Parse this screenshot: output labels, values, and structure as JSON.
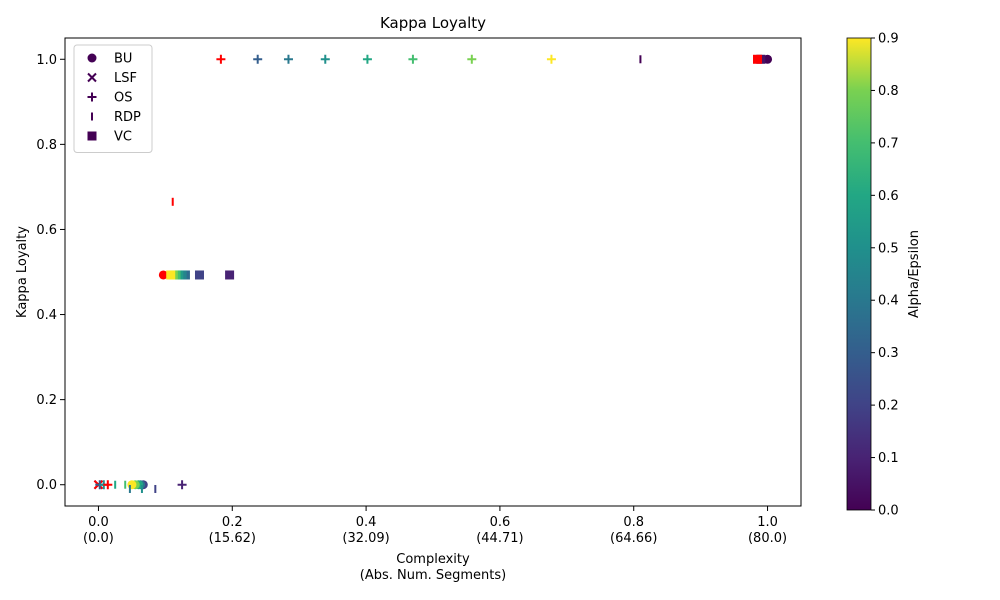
{
  "chart_data": {
    "type": "scatter",
    "title": "Kappa Loyalty",
    "xlabel": "Complexity\n(Abs. Num. Segments)",
    "ylabel": "Kappa Loyalty",
    "xlim": [
      -0.05,
      1.05
    ],
    "ylim": [
      -0.05,
      1.05
    ],
    "x_ticks": [
      {
        "value": 0.0,
        "label": "0.0\n(0.0)"
      },
      {
        "value": 0.2,
        "label": "0.2\n(15.62)"
      },
      {
        "value": 0.4,
        "label": "0.4\n(32.09)"
      },
      {
        "value": 0.6,
        "label": "0.6\n(44.71)"
      },
      {
        "value": 0.8,
        "label": "0.8\n(64.66)"
      },
      {
        "value": 1.0,
        "label": "1.0\n(80.0)"
      }
    ],
    "y_ticks": [
      "0.0",
      "0.2",
      "0.4",
      "0.6",
      "0.8",
      "1.0"
    ],
    "grid": false,
    "legend_position": "top-left",
    "colorbar": {
      "label": "Alpha/Epsilon",
      "min": 0.0,
      "max": 0.9,
      "ticks": [
        "0.0",
        "0.1",
        "0.2",
        "0.3",
        "0.4",
        "0.5",
        "0.6",
        "0.7",
        "0.8",
        "0.9"
      ],
      "colormap": "viridis"
    },
    "highlight_color": "#ff0000",
    "series": [
      {
        "name": "BU",
        "marker": "circle",
        "points": [
          {
            "x": 1.0,
            "y": 1.0,
            "c": 0.0
          },
          {
            "x": 0.097,
            "y": 0.493,
            "c": "red"
          },
          {
            "x": 0.067,
            "y": 0.0,
            "c": 0.2
          },
          {
            "x": 0.063,
            "y": 0.0,
            "c": 0.4
          },
          {
            "x": 0.06,
            "y": 0.0,
            "c": 0.6
          },
          {
            "x": 0.055,
            "y": 0.0,
            "c": 0.8
          },
          {
            "x": 0.05,
            "y": 0.0,
            "c": 0.9
          }
        ]
      },
      {
        "name": "LSF",
        "marker": "x",
        "points": [
          {
            "x": 0.0,
            "y": 0.0,
            "c": 0.0
          },
          {
            "x": 0.0,
            "y": 0.0,
            "c": "red"
          }
        ]
      },
      {
        "name": "OS",
        "marker": "plus",
        "points": [
          {
            "x": 0.183,
            "y": 1.0,
            "c": "red"
          },
          {
            "x": 0.238,
            "y": 1.0,
            "c": 0.3
          },
          {
            "x": 0.284,
            "y": 1.0,
            "c": 0.4
          },
          {
            "x": 0.339,
            "y": 1.0,
            "c": 0.5
          },
          {
            "x": 0.402,
            "y": 1.0,
            "c": 0.6
          },
          {
            "x": 0.47,
            "y": 1.0,
            "c": 0.7
          },
          {
            "x": 0.558,
            "y": 1.0,
            "c": 0.8
          },
          {
            "x": 0.677,
            "y": 1.0,
            "c": 0.9
          },
          {
            "x": 0.125,
            "y": 0.0,
            "c": 0.1
          },
          {
            "x": 0.002,
            "y": 0.0,
            "c": 0.3
          },
          {
            "x": 0.008,
            "y": 0.0,
            "c": 0.5
          },
          {
            "x": 0.014,
            "y": 0.0,
            "c": "red"
          }
        ]
      },
      {
        "name": "RDP",
        "marker": "vline",
        "points": [
          {
            "x": 0.81,
            "y": 1.0,
            "c": 0.0
          },
          {
            "x": 0.111,
            "y": 0.665,
            "c": "red"
          },
          {
            "x": 0.025,
            "y": 0.0,
            "c": 0.6
          },
          {
            "x": 0.04,
            "y": 0.0,
            "c": 0.7
          },
          {
            "x": 0.047,
            "y": -0.01,
            "c": 0.4
          },
          {
            "x": 0.065,
            "y": -0.01,
            "c": 0.5
          },
          {
            "x": 0.085,
            "y": -0.01,
            "c": 0.2
          }
        ]
      },
      {
        "name": "VC",
        "marker": "square",
        "points": [
          {
            "x": 0.99,
            "y": 1.0,
            "c": 0.05
          },
          {
            "x": 0.985,
            "y": 1.0,
            "c": "red"
          },
          {
            "x": 0.196,
            "y": 0.493,
            "c": 0.1
          },
          {
            "x": 0.151,
            "y": 0.493,
            "c": 0.2
          },
          {
            "x": 0.13,
            "y": 0.493,
            "c": 0.35
          },
          {
            "x": 0.125,
            "y": 0.493,
            "c": 0.45
          },
          {
            "x": 0.12,
            "y": 0.493,
            "c": 0.55
          },
          {
            "x": 0.116,
            "y": 0.493,
            "c": 0.7
          },
          {
            "x": 0.112,
            "y": 0.493,
            "c": 0.8
          },
          {
            "x": 0.108,
            "y": 0.493,
            "c": 0.9
          }
        ]
      }
    ]
  }
}
